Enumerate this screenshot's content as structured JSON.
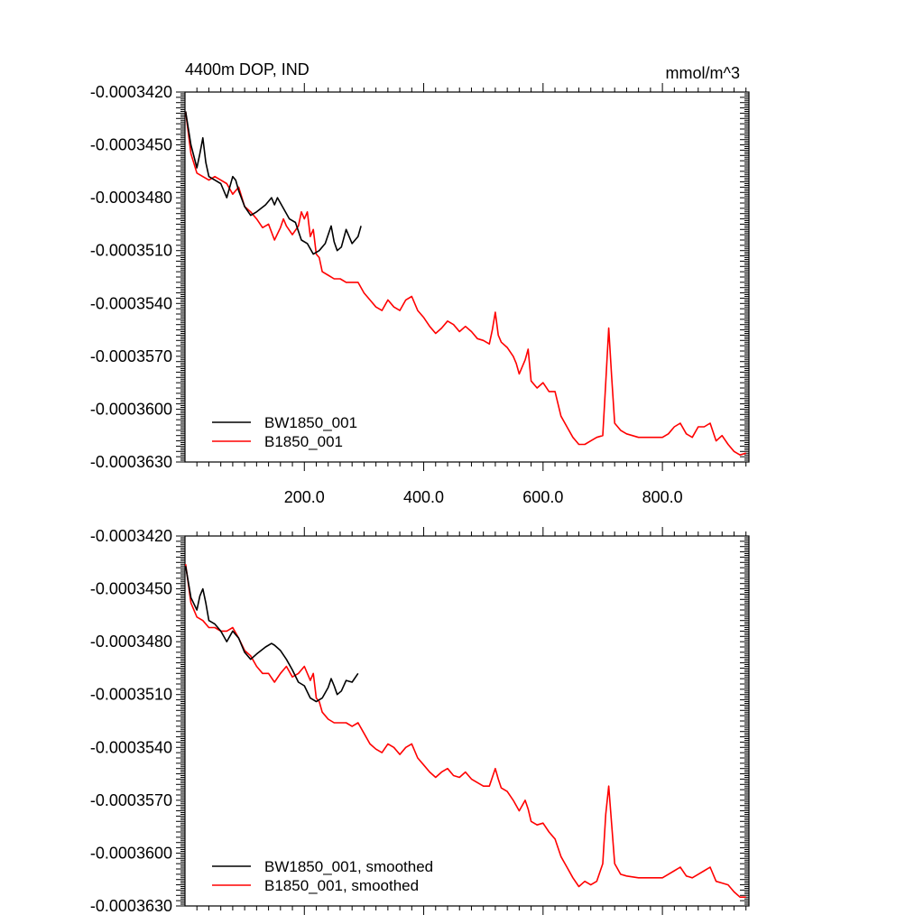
{
  "colors": {
    "bw": "#000000",
    "b": "#ff0000"
  },
  "chart_data": [
    {
      "type": "line",
      "title": "4400m DOP, IND",
      "units": "mmol/m^3",
      "xlim": [
        0,
        945
      ],
      "ylim": [
        -0.000363,
        -0.000342
      ],
      "xticks": [
        200,
        400,
        600,
        800
      ],
      "xtick_labels": [
        "200.0",
        "400.0",
        "600.0",
        "800.0"
      ],
      "yticks": [
        -0.000342,
        -0.000345,
        -0.000348,
        -0.000351,
        -0.000354,
        -0.000357,
        -0.00036,
        -0.000363
      ],
      "ytick_labels": [
        "-0.0003420",
        "-0.0003450",
        "-0.0003480",
        "-0.0003510",
        "-0.0003540",
        "-0.0003570",
        "-0.0003600",
        "-0.0003630"
      ],
      "legend": "bottom-left",
      "series": [
        {
          "name": "BW1850_001",
          "color": "#000000",
          "x": [
            1,
            10,
            20,
            25,
            30,
            35,
            40,
            50,
            60,
            70,
            75,
            80,
            85,
            90,
            100,
            110,
            120,
            135,
            145,
            150,
            155,
            165,
            175,
            185,
            195,
            205,
            215,
            225,
            235,
            245,
            250,
            255,
            262,
            270,
            280,
            290,
            295
          ],
          "y": [
            -0.0003431,
            -0.000345,
            -0.0003463,
            -0.0003455,
            -0.0003446,
            -0.000346,
            -0.0003468,
            -0.000347,
            -0.0003472,
            -0.000348,
            -0.0003474,
            -0.0003468,
            -0.000347,
            -0.0003476,
            -0.0003485,
            -0.000349,
            -0.0003488,
            -0.0003484,
            -0.000348,
            -0.0003484,
            -0.000348,
            -0.0003486,
            -0.0003492,
            -0.0003494,
            -0.0003504,
            -0.0003506,
            -0.0003512,
            -0.000351,
            -0.0003506,
            -0.0003496,
            -0.0003505,
            -0.000351,
            -0.0003508,
            -0.0003498,
            -0.0003506,
            -0.0003502,
            -0.0003496
          ]
        },
        {
          "name": "B1850_001",
          "color": "#ff0000",
          "x": [
            1,
            10,
            20,
            30,
            40,
            50,
            60,
            70,
            80,
            90,
            100,
            110,
            120,
            130,
            140,
            150,
            160,
            165,
            170,
            180,
            190,
            195,
            200,
            205,
            210,
            215,
            220,
            225,
            230,
            240,
            250,
            260,
            270,
            280,
            290,
            300,
            310,
            320,
            330,
            340,
            350,
            360,
            370,
            380,
            390,
            400,
            410,
            420,
            430,
            440,
            450,
            460,
            470,
            480,
            490,
            500,
            510,
            515,
            520,
            525,
            530,
            540,
            550,
            555,
            560,
            570,
            575,
            580,
            590,
            600,
            610,
            620,
            630,
            640,
            650,
            660,
            670,
            680,
            690,
            700,
            705,
            710,
            715,
            720,
            730,
            740,
            760,
            780,
            800,
            810,
            820,
            830,
            840,
            850,
            860,
            870,
            880,
            890,
            900,
            910,
            920,
            930,
            940
          ],
          "y": [
            -0.0003431,
            -0.0003455,
            -0.0003466,
            -0.0003468,
            -0.000347,
            -0.0003468,
            -0.000347,
            -0.0003472,
            -0.0003478,
            -0.0003474,
            -0.0003485,
            -0.0003488,
            -0.0003492,
            -0.0003497,
            -0.0003495,
            -0.0003504,
            -0.0003497,
            -0.0003492,
            -0.0003496,
            -0.0003501,
            -0.0003496,
            -0.0003488,
            -0.0003492,
            -0.0003488,
            -0.0003502,
            -0.0003498,
            -0.0003512,
            -0.0003514,
            -0.0003522,
            -0.0003524,
            -0.0003526,
            -0.0003526,
            -0.0003528,
            -0.0003528,
            -0.0003528,
            -0.0003534,
            -0.0003538,
            -0.0003542,
            -0.0003544,
            -0.0003538,
            -0.0003542,
            -0.0003544,
            -0.0003538,
            -0.0003536,
            -0.0003544,
            -0.0003548,
            -0.0003553,
            -0.0003557,
            -0.0003554,
            -0.000355,
            -0.0003552,
            -0.0003556,
            -0.0003553,
            -0.0003556,
            -0.000356,
            -0.0003561,
            -0.0003563,
            -0.0003555,
            -0.0003545,
            -0.0003558,
            -0.0003562,
            -0.0003565,
            -0.000357,
            -0.0003574,
            -0.000358,
            -0.0003572,
            -0.0003566,
            -0.0003584,
            -0.0003588,
            -0.0003585,
            -0.000359,
            -0.000359,
            -0.0003604,
            -0.000361,
            -0.0003616,
            -0.000362,
            -0.000362,
            -0.0003618,
            -0.0003616,
            -0.0003615,
            -0.0003585,
            -0.0003554,
            -0.0003582,
            -0.0003608,
            -0.0003612,
            -0.0003614,
            -0.0003616,
            -0.0003616,
            -0.0003616,
            -0.0003614,
            -0.000361,
            -0.0003608,
            -0.0003614,
            -0.0003616,
            -0.000361,
            -0.000361,
            -0.0003608,
            -0.0003618,
            -0.0003615,
            -0.000362,
            -0.0003624,
            -0.0003626,
            -0.0003625
          ]
        }
      ]
    },
    {
      "type": "line",
      "title": "",
      "xlim": [
        0,
        945
      ],
      "ylim": [
        -0.000363,
        -0.000342
      ],
      "xticks": [
        200,
        400,
        600,
        800
      ],
      "xtick_labels": [],
      "yticks": [
        -0.000342,
        -0.000345,
        -0.000348,
        -0.000351,
        -0.000354,
        -0.000357,
        -0.00036,
        -0.000363
      ],
      "ytick_labels": [
        "-0.0003420",
        "-0.0003450",
        "-0.0003480",
        "-0.0003510",
        "-0.0003540",
        "-0.0003570",
        "-0.0003600",
        "-0.0003630"
      ],
      "legend": "bottom-left",
      "series": [
        {
          "name": "BW1850_001, smoothed",
          "color": "#000000",
          "x": [
            1,
            10,
            20,
            25,
            30,
            35,
            40,
            50,
            60,
            70,
            80,
            90,
            100,
            110,
            120,
            135,
            145,
            150,
            160,
            170,
            180,
            190,
            200,
            210,
            220,
            230,
            240,
            245,
            250,
            255,
            262,
            270,
            280,
            290
          ],
          "y": [
            -0.0003437,
            -0.0003455,
            -0.0003462,
            -0.0003454,
            -0.000345,
            -0.0003458,
            -0.0003468,
            -0.000347,
            -0.0003474,
            -0.000348,
            -0.0003474,
            -0.0003478,
            -0.0003486,
            -0.000349,
            -0.0003487,
            -0.0003483,
            -0.0003481,
            -0.0003482,
            -0.0003485,
            -0.000349,
            -0.0003496,
            -0.0003503,
            -0.0003505,
            -0.0003512,
            -0.0003514,
            -0.0003512,
            -0.0003506,
            -0.0003501,
            -0.0003505,
            -0.000351,
            -0.0003508,
            -0.0003502,
            -0.0003503,
            -0.0003498
          ]
        },
        {
          "name": "B1850_001, smoothed",
          "color": "#ff0000",
          "x": [
            1,
            10,
            20,
            30,
            40,
            50,
            60,
            70,
            80,
            90,
            100,
            110,
            120,
            130,
            140,
            150,
            160,
            170,
            180,
            190,
            200,
            210,
            215,
            220,
            225,
            230,
            240,
            250,
            260,
            270,
            280,
            290,
            300,
            310,
            320,
            330,
            340,
            350,
            360,
            370,
            380,
            390,
            400,
            410,
            420,
            430,
            440,
            450,
            460,
            470,
            480,
            490,
            500,
            510,
            520,
            525,
            530,
            540,
            550,
            560,
            570,
            575,
            580,
            590,
            600,
            610,
            620,
            630,
            640,
            650,
            660,
            670,
            680,
            690,
            700,
            705,
            710,
            715,
            720,
            730,
            740,
            760,
            780,
            800,
            810,
            820,
            830,
            840,
            850,
            860,
            870,
            880,
            890,
            900,
            910,
            920,
            930,
            940
          ],
          "y": [
            -0.0003436,
            -0.0003458,
            -0.0003466,
            -0.0003468,
            -0.0003472,
            -0.0003472,
            -0.0003474,
            -0.0003474,
            -0.0003472,
            -0.0003478,
            -0.0003485,
            -0.0003488,
            -0.0003494,
            -0.0003498,
            -0.0003498,
            -0.0003503,
            -0.0003498,
            -0.0003494,
            -0.00035,
            -0.0003498,
            -0.0003494,
            -0.0003502,
            -0.0003498,
            -0.0003512,
            -0.0003514,
            -0.000352,
            -0.0003524,
            -0.0003526,
            -0.0003526,
            -0.0003526,
            -0.0003528,
            -0.0003526,
            -0.0003532,
            -0.0003538,
            -0.0003541,
            -0.0003543,
            -0.0003538,
            -0.000354,
            -0.0003544,
            -0.000354,
            -0.0003538,
            -0.0003546,
            -0.000355,
            -0.0003554,
            -0.0003557,
            -0.0003554,
            -0.0003552,
            -0.0003556,
            -0.0003557,
            -0.0003554,
            -0.0003558,
            -0.000356,
            -0.0003562,
            -0.0003562,
            -0.0003552,
            -0.0003558,
            -0.0003563,
            -0.0003565,
            -0.000357,
            -0.0003576,
            -0.000357,
            -0.0003575,
            -0.0003582,
            -0.0003584,
            -0.0003583,
            -0.0003588,
            -0.0003592,
            -0.0003602,
            -0.0003608,
            -0.0003614,
            -0.0003619,
            -0.0003616,
            -0.0003618,
            -0.0003616,
            -0.0003606,
            -0.0003578,
            -0.0003562,
            -0.0003584,
            -0.0003606,
            -0.0003612,
            -0.0003613,
            -0.0003614,
            -0.0003614,
            -0.0003614,
            -0.0003612,
            -0.000361,
            -0.0003608,
            -0.0003613,
            -0.0003614,
            -0.0003612,
            -0.000361,
            -0.0003608,
            -0.0003616,
            -0.0003617,
            -0.0003618,
            -0.0003622,
            -0.0003625,
            -0.0003625
          ]
        }
      ]
    }
  ]
}
